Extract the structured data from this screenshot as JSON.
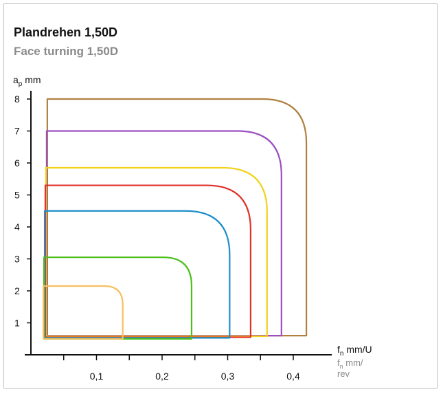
{
  "chart_data": {
    "type": "line",
    "title": "Plandrehen 1,50D",
    "subtitle": "Face turning 1,50D",
    "ylabel": {
      "base": "a",
      "sub": "p",
      "unit": " mm"
    },
    "xlabel": {
      "base": "f",
      "sub": "n",
      "unit": " mm/U"
    },
    "xlabel_alt": {
      "base": "f",
      "sub": "n",
      "unit_line1": " mm/",
      "unit_line2": "rev"
    },
    "xlim": [
      0,
      0.45
    ],
    "ylim": [
      0,
      8.2
    ],
    "x_ticks": [
      0.05,
      0.1,
      0.15,
      0.2,
      0.25,
      0.3,
      0.35,
      0.4
    ],
    "x_tick_labels": [
      {
        "value": 0.1,
        "label": "0,1"
      },
      {
        "value": 0.2,
        "label": "0,2"
      },
      {
        "value": 0.3,
        "label": "0,3"
      },
      {
        "value": 0.4,
        "label": "0,4"
      }
    ],
    "y_ticks": [
      1,
      2,
      3,
      4,
      5,
      6,
      7,
      8
    ],
    "y_tick_labels": [
      "1",
      "2",
      "3",
      "4",
      "5",
      "6",
      "7",
      "8"
    ],
    "series": [
      {
        "f_min": 0.025,
        "f_max": 0.42,
        "ap_min": 0.6,
        "ap_max": 8.0,
        "color": "#b08040"
      },
      {
        "f_min": 0.024,
        "f_max": 0.382,
        "ap_min": 0.6,
        "ap_max": 7.0,
        "color": "#9b4fc0"
      },
      {
        "f_min": 0.023,
        "f_max": 0.36,
        "ap_min": 0.58,
        "ap_max": 5.85,
        "color": "#f2d21a"
      },
      {
        "f_min": 0.022,
        "f_max": 0.335,
        "ap_min": 0.55,
        "ap_max": 5.3,
        "color": "#e0302a"
      },
      {
        "f_min": 0.021,
        "f_max": 0.303,
        "ap_min": 0.53,
        "ap_max": 4.5,
        "color": "#1e8fc8"
      },
      {
        "f_min": 0.02,
        "f_max": 0.245,
        "ap_min": 0.5,
        "ap_max": 3.05,
        "color": "#4cbf1a"
      },
      {
        "f_min": 0.019,
        "f_max": 0.14,
        "ap_min": 0.5,
        "ap_max": 2.15,
        "color": "#f5c060"
      }
    ]
  }
}
